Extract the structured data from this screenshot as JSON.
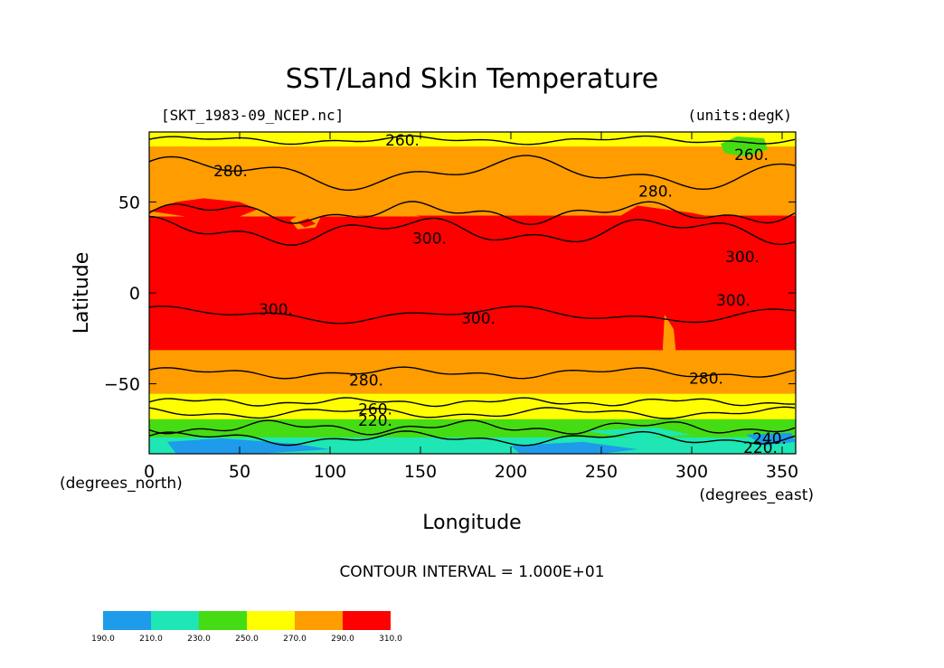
{
  "chart_data": {
    "type": "heatmap",
    "title": "SST/Land Skin Temperature",
    "file_label": "[SKT_1983-09_NCEP.nc]",
    "units_label": "(units:degK)",
    "xlabel": "Longitude",
    "ylabel": "Latitude",
    "x_unit_label": "(degrees_east)",
    "y_unit_label": "(degrees_north)",
    "xlim": [
      0,
      357.5
    ],
    "ylim": [
      -88.5,
      88.5
    ],
    "x_ticks": [
      0,
      50,
      100,
      150,
      200,
      250,
      300,
      350
    ],
    "y_ticks": [
      50,
      0,
      -50
    ],
    "y_tick_labels": [
      "50",
      "0",
      "−50"
    ],
    "contour_interval_text": "CONTOUR INTERVAL = 1.000E+01",
    "contour_levels": [
      220,
      240,
      260,
      280,
      300
    ],
    "colorbar": {
      "levels": [
        "190.0",
        "210.0",
        "230.0",
        "250.0",
        "270.0",
        "290.0",
        "310.0"
      ],
      "colors": [
        "#1e9bea",
        "#1ee6b4",
        "#46dc14",
        "#ffff00",
        "#ff9c00",
        "#ff0000"
      ]
    },
    "bands": [
      {
        "lat_top": 88.5,
        "lat_bottom": 80,
        "value": 265
      },
      {
        "lat_top": 80,
        "lat_bottom": 42,
        "value": 285
      },
      {
        "lat_top": 42,
        "lat_bottom": -32,
        "value": 300
      },
      {
        "lat_top": -32,
        "lat_bottom": -56,
        "value": 285
      },
      {
        "lat_top": -56,
        "lat_bottom": -70,
        "value": 265
      },
      {
        "lat_top": -70,
        "lat_bottom": -80,
        "value": 245
      },
      {
        "lat_top": -80,
        "lat_bottom": -88.5,
        "value": 225
      }
    ],
    "contour_labels": [
      {
        "text": "260.",
        "lon": 140,
        "lat": 84
      },
      {
        "text": "280.",
        "lon": 45,
        "lat": 67
      },
      {
        "text": "280.",
        "lon": 280,
        "lat": 56
      },
      {
        "text": "260.",
        "lon": 333,
        "lat": 76
      },
      {
        "text": "300.",
        "lon": 155,
        "lat": 30
      },
      {
        "text": "300.",
        "lon": 328,
        "lat": 20
      },
      {
        "text": "300.",
        "lon": 70,
        "lat": -9
      },
      {
        "text": "300.",
        "lon": 182,
        "lat": -14
      },
      {
        "text": "300.",
        "lon": 323,
        "lat": -4
      },
      {
        "text": "280.",
        "lon": 120,
        "lat": -48
      },
      {
        "text": "280.",
        "lon": 308,
        "lat": -47
      },
      {
        "text": "260.",
        "lon": 125,
        "lat": -64
      },
      {
        "text": "220.",
        "lon": 125,
        "lat": -70
      },
      {
        "text": "240.",
        "lon": 343,
        "lat": -80
      },
      {
        "text": "220.",
        "lon": 338,
        "lat": -85
      }
    ]
  }
}
